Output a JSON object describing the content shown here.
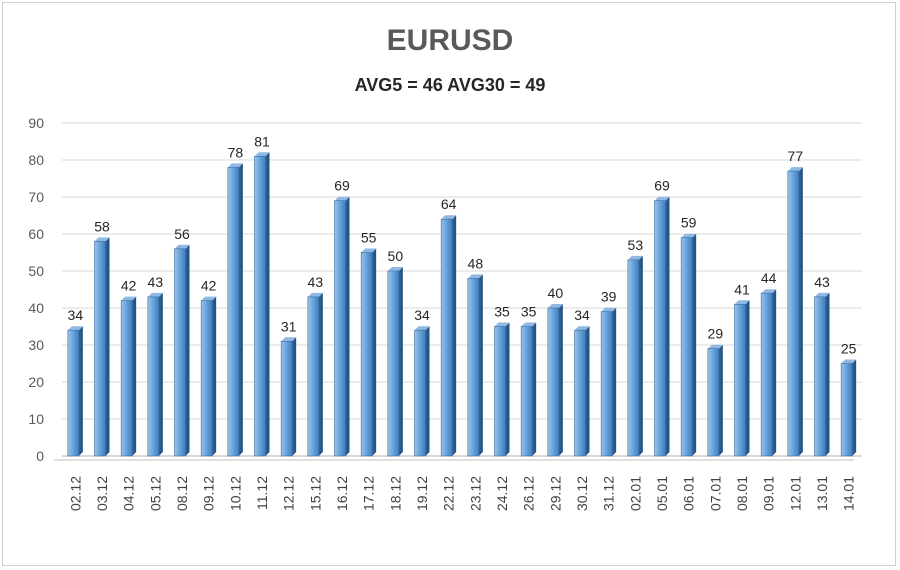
{
  "chart_data": {
    "type": "bar",
    "title": "EURUSD",
    "subtitle": "AVG5 = 46 AVG30 = 49",
    "categories": [
      "02.12",
      "03.12",
      "04.12",
      "05.12",
      "08.12",
      "09.12",
      "10.12",
      "11.12",
      "12.12",
      "15.12",
      "16.12",
      "17.12",
      "18.12",
      "19.12",
      "22.12",
      "23.12",
      "24.12",
      "26.12",
      "29.12",
      "30.12",
      "31.12",
      "02.01",
      "05.01",
      "06.01",
      "07.01",
      "08.01",
      "09.01",
      "12.01",
      "13.01",
      "14.01"
    ],
    "values": [
      34,
      58,
      42,
      43,
      56,
      42,
      78,
      81,
      31,
      43,
      69,
      55,
      50,
      34,
      64,
      48,
      35,
      35,
      40,
      34,
      39,
      53,
      69,
      59,
      29,
      41,
      44,
      77,
      43,
      25
    ],
    "ylim": [
      0,
      90
    ],
    "yticks": [
      0,
      10,
      20,
      30,
      40,
      50,
      60,
      70,
      80,
      90
    ],
    "grid": true,
    "legend": "none",
    "bar_color": "#5b9bd5"
  }
}
